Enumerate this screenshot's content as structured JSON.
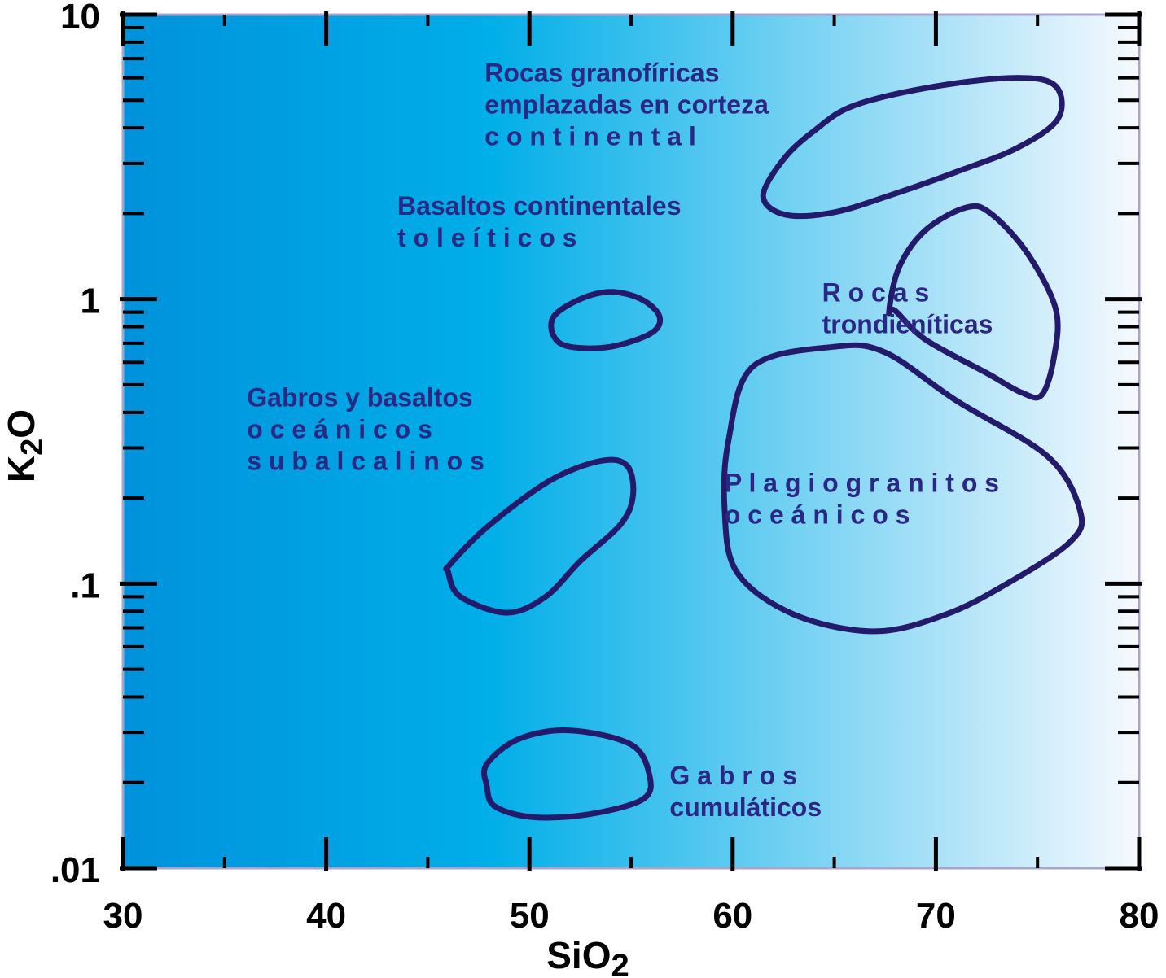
{
  "chart_data": {
    "type": "scatter",
    "subtype": "discrimination-diagram",
    "xlabel": "SiO",
    "xlabel_subscript": "2",
    "ylabel": "K",
    "ylabel_subscript": "2",
    "ylabel_suffix": "O",
    "xlim": [
      30,
      80
    ],
    "ylim": [
      0.01,
      10
    ],
    "yscale": "log",
    "grid": false,
    "legend": "none",
    "x_ticks": [
      {
        "value": 30,
        "label": "30"
      },
      {
        "value": 40,
        "label": "40"
      },
      {
        "value": 50,
        "label": "50"
      },
      {
        "value": 60,
        "label": "60"
      },
      {
        "value": 70,
        "label": "70"
      },
      {
        "value": 80,
        "label": "80"
      }
    ],
    "y_ticks": [
      {
        "value": 0.01,
        "label": ".01"
      },
      {
        "value": 0.1,
        "label": ".1"
      },
      {
        "value": 1,
        "label": "1"
      },
      {
        "value": 10,
        "label": "10"
      }
    ],
    "colors": {
      "outline": "#241a6b",
      "text": "#2b2784",
      "bg_left": "#0092dc",
      "bg_mid": "#00aee8",
      "bg_right": "#f6f9fe",
      "frame": "#a9a4cc",
      "axis_text": "#000000"
    },
    "fields": [
      {
        "id": "granophyric",
        "label_lines": [
          "Rocas  granofíricas",
          "emplazadas en corteza",
          "c o n t i n e n t a l"
        ],
        "label_anchor": [
          47.8,
          5.8
        ],
        "outline": [
          [
            61.5,
            2.3
          ],
          [
            62.6,
            1.98
          ],
          [
            65,
            2.02
          ],
          [
            68,
            2.35
          ],
          [
            71,
            2.8
          ],
          [
            74,
            3.4
          ],
          [
            76,
            4.3
          ],
          [
            75.9,
            5.6
          ],
          [
            74,
            6
          ],
          [
            70,
            5.6
          ],
          [
            66,
            4.8
          ],
          [
            64,
            3.9
          ],
          [
            62.5,
            3.1
          ],
          [
            61.5,
            2.3
          ]
        ]
      },
      {
        "id": "trondhjemite",
        "label_lines": [
          "R  o  c  a  s",
          "trondieníticas"
        ],
        "label_anchor": [
          64.4,
          0.98
        ],
        "outline": [
          [
            67.7,
            0.91
          ],
          [
            68.2,
            1.3
          ],
          [
            69.5,
            1.75
          ],
          [
            71.5,
            2.1
          ],
          [
            72.7,
            2.0
          ],
          [
            74.5,
            1.45
          ],
          [
            75.9,
            0.92
          ],
          [
            75.8,
            0.62
          ],
          [
            75.2,
            0.46
          ],
          [
            74.2,
            0.47
          ],
          [
            72.5,
            0.55
          ],
          [
            69.5,
            0.72
          ],
          [
            68,
            0.91
          ],
          [
            67.7,
            0.91
          ]
        ]
      },
      {
        "id": "continental-tholeiite",
        "label_lines": [
          "Basaltos continentales",
          "t  o  l  e  í  t  i  c  o  s"
        ],
        "label_anchor": [
          43.5,
          1.98
        ],
        "outline": [
          [
            51.2,
            0.74
          ],
          [
            52,
            0.68
          ],
          [
            54,
            0.68
          ],
          [
            56,
            0.76
          ],
          [
            56.4,
            0.87
          ],
          [
            55.5,
            1.0
          ],
          [
            54,
            1.06
          ],
          [
            52.5,
            1.0
          ],
          [
            51.2,
            0.87
          ],
          [
            51.2,
            0.74
          ]
        ]
      },
      {
        "id": "oceanic-subalkaline",
        "label_lines": [
          "Gabros y basaltos",
          "o  c  e  á  n  i  c  o  s",
          "s u b a l c a l i n o s"
        ],
        "label_anchor": [
          36.1,
          0.42
        ],
        "outline": [
          [
            46,
            0.11
          ],
          [
            46.6,
            0.09
          ],
          [
            48.9,
            0.079
          ],
          [
            50.8,
            0.09
          ],
          [
            52.5,
            0.12
          ],
          [
            54.5,
            0.162
          ],
          [
            55.1,
            0.205
          ],
          [
            54.8,
            0.26
          ],
          [
            53.5,
            0.27
          ],
          [
            51,
            0.23
          ],
          [
            48,
            0.16
          ],
          [
            46.1,
            0.117
          ],
          [
            46,
            0.11
          ]
        ]
      },
      {
        "id": "oceanic-plagiogranite",
        "label_lines": [
          "P l a g i o g r a n i t o s",
          "o  c  e  á  n  i  c  o  s"
        ],
        "label_anchor": [
          59.6,
          0.21
        ],
        "outline": [
          [
            59.6,
            0.185
          ],
          [
            60.2,
            0.11
          ],
          [
            63,
            0.078
          ],
          [
            67,
            0.068
          ],
          [
            70.5,
            0.078
          ],
          [
            73.5,
            0.1
          ],
          [
            76.6,
            0.14
          ],
          [
            77.1,
            0.18
          ],
          [
            75.5,
            0.28
          ],
          [
            71,
            0.44
          ],
          [
            67.5,
            0.65
          ],
          [
            65,
            0.68
          ],
          [
            61,
            0.58
          ],
          [
            59.8,
            0.32
          ],
          [
            59.6,
            0.185
          ]
        ]
      },
      {
        "id": "cumulate-gabbro",
        "label_lines": [
          "G  a  b  r  o  s",
          "cumuláticos"
        ],
        "label_anchor": [
          56.9,
          0.0197
        ],
        "outline": [
          [
            47.9,
            0.0195
          ],
          [
            48.3,
            0.0165
          ],
          [
            50.2,
            0.0151
          ],
          [
            53,
            0.0155
          ],
          [
            55.6,
            0.0175
          ],
          [
            55.9,
            0.0213
          ],
          [
            55,
            0.0272
          ],
          [
            52,
            0.0305
          ],
          [
            49.5,
            0.0285
          ],
          [
            47.9,
            0.0232
          ],
          [
            47.9,
            0.0195
          ]
        ]
      }
    ]
  }
}
